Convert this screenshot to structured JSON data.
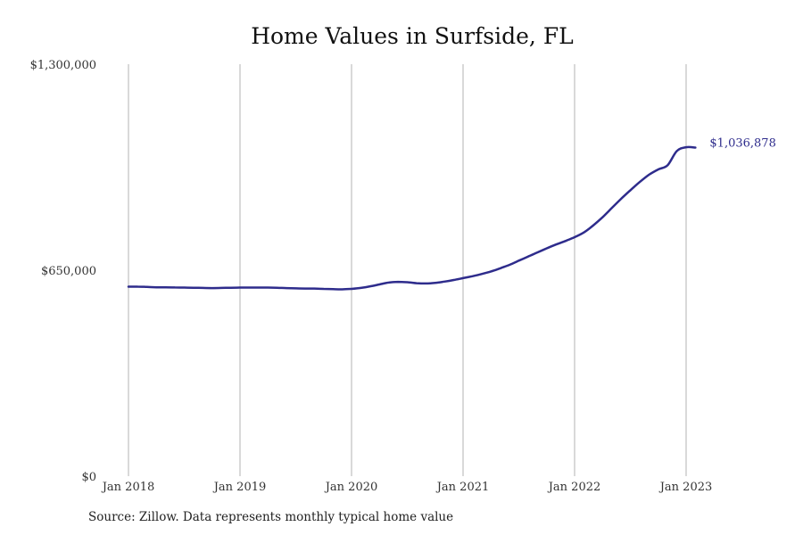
{
  "title": "Home Values in Surfside, FL",
  "source": "Source: Zillow. Data represents monthly typical home value",
  "colors": {
    "line": "#2e2c8c",
    "grid": "#b3b3b3"
  },
  "chart_data": {
    "type": "line",
    "title": "Home Values in Surfside, FL",
    "xlabel": "",
    "ylabel": "",
    "ylim": [
      0,
      1300000
    ],
    "grid": "vertical at each January",
    "yticks": [
      {
        "value": 0,
        "label": "$0"
      },
      {
        "value": 650000,
        "label": "$650,000"
      },
      {
        "value": 1300000,
        "label": "$1,300,000"
      }
    ],
    "xticks": [
      {
        "date": "2018-01",
        "label": "Jan 2018"
      },
      {
        "date": "2019-01",
        "label": "Jan 2019"
      },
      {
        "date": "2020-01",
        "label": "Jan 2020"
      },
      {
        "date": "2021-01",
        "label": "Jan 2021"
      },
      {
        "date": "2022-01",
        "label": "Jan 2022"
      },
      {
        "date": "2023-01",
        "label": "Jan 2023"
      }
    ],
    "end_label": "$1,036,878",
    "series": [
      {
        "name": "",
        "x": [
          "2018-01",
          "2018-02",
          "2018-03",
          "2018-04",
          "2018-05",
          "2018-06",
          "2018-07",
          "2018-08",
          "2018-09",
          "2018-10",
          "2018-11",
          "2018-12",
          "2019-01",
          "2019-02",
          "2019-03",
          "2019-04",
          "2019-05",
          "2019-06",
          "2019-07",
          "2019-08",
          "2019-09",
          "2019-10",
          "2019-11",
          "2019-12",
          "2020-01",
          "2020-02",
          "2020-03",
          "2020-04",
          "2020-05",
          "2020-06",
          "2020-07",
          "2020-08",
          "2020-09",
          "2020-10",
          "2020-11",
          "2020-12",
          "2021-01",
          "2021-02",
          "2021-03",
          "2021-04",
          "2021-05",
          "2021-06",
          "2021-07",
          "2021-08",
          "2021-09",
          "2021-10",
          "2021-11",
          "2021-12",
          "2022-01",
          "2022-02",
          "2022-03",
          "2022-04",
          "2022-05",
          "2022-06",
          "2022-07",
          "2022-08",
          "2022-09",
          "2022-10",
          "2022-11",
          "2022-12",
          "2023-01",
          "2023-02"
        ],
        "values": [
          598000,
          598000,
          597000,
          596000,
          596000,
          595500,
          595000,
          594500,
          594000,
          593500,
          594000,
          594500,
          595000,
          595000,
          595000,
          595000,
          594500,
          593500,
          592500,
          592000,
          592000,
          591000,
          590000,
          589500,
          591000,
          594000,
          599000,
          605000,
          611000,
          613000,
          612000,
          609000,
          608000,
          610000,
          614000,
          619000,
          625000,
          631000,
          638000,
          646000,
          656000,
          667000,
          680000,
          693000,
          706000,
          719000,
          731000,
          742000,
          754000,
          769000,
          791000,
          817000,
          846000,
          875000,
          902000,
          928000,
          951000,
          968000,
          981000,
          1026000,
          1038000,
          1036878
        ]
      }
    ]
  }
}
